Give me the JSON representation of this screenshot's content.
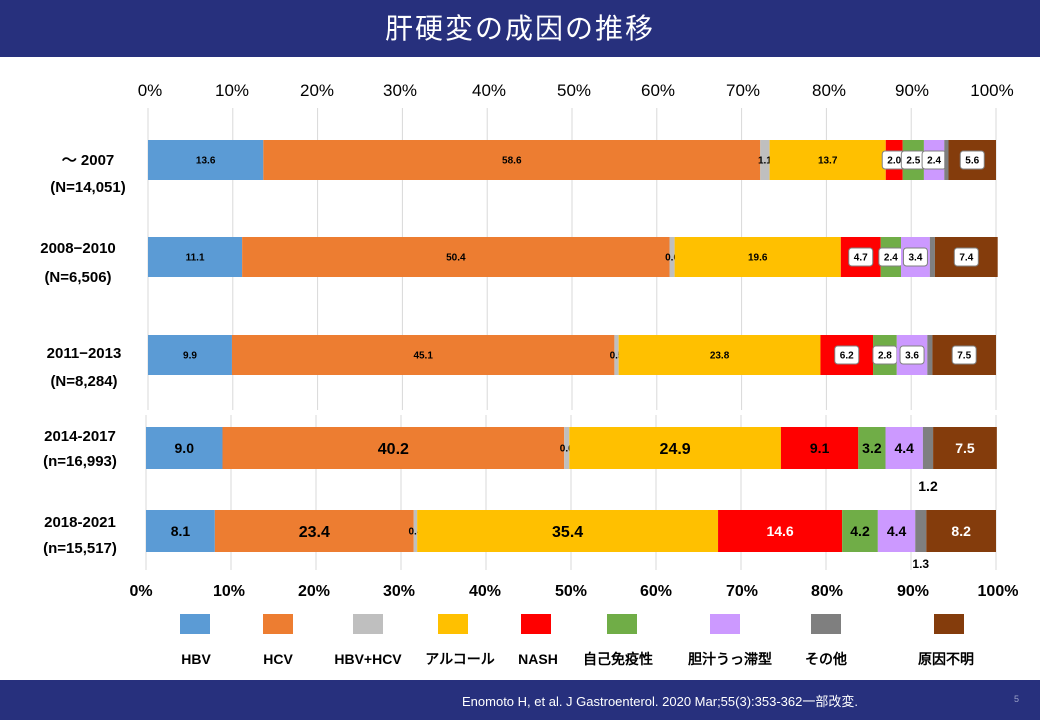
{
  "title": "肝硬変の成因の推移",
  "footer": {
    "citation": "Enomoto H, et al. J Gastroenterol. 2020 Mar;55(3):353-362一部改変.",
    "page_number": "5"
  },
  "colors": {
    "HBV": "#5b9bd5",
    "HCV": "#ed7d31",
    "HBV+HCV": "#bfbfbf",
    "alcohol": "#ffc000",
    "NASH": "#ff0000",
    "autoimmune": "#70ad47",
    "cholestatic": "#cc99ff",
    "other": "#7f7f7f",
    "unknown": "#843c0c",
    "header": "#27307d"
  },
  "chart_data": {
    "type": "bar",
    "orientation": "horizontal-stacked-100",
    "xlim": [
      0,
      100
    ],
    "grid": true,
    "legend_position": "bottom",
    "top_tick_labels": [
      "0%",
      "10%",
      "20%",
      "30%",
      "40%",
      "50%",
      "60%",
      "70%",
      "80%",
      "90%",
      "100%"
    ],
    "bottom_tick_labels": [
      "0%",
      "10%",
      "20%",
      "30%",
      "40%",
      "50%",
      "60%",
      "70%",
      "80%",
      "90%",
      "100%"
    ],
    "categories": [
      {
        "period": "～ 2007",
        "n": "(N=14,051)"
      },
      {
        "period": "2008−2010",
        "n": "(N=6,506)"
      },
      {
        "period": "2011−2013",
        "n": "(N=8,284)"
      },
      {
        "period": "2014-2017",
        "n": "(n=16,993)"
      },
      {
        "period": "2018-2021",
        "n": "(n=15,517)"
      }
    ],
    "series": [
      {
        "key": "HBV",
        "name": "HBV",
        "values": [
          13.6,
          11.1,
          9.9,
          9.0,
          8.1
        ],
        "labels": [
          "13.6",
          "11.1",
          "9.9",
          "9.0",
          "8.1"
        ]
      },
      {
        "key": "HCV",
        "name": "HCV",
        "values": [
          58.6,
          50.4,
          45.1,
          40.2,
          23.4
        ],
        "labels": [
          "58.6",
          "50.4",
          "45.1",
          "40.2",
          "23.4"
        ]
      },
      {
        "key": "HBV+HCV",
        "name": "HBV+HCV",
        "values": [
          1.1,
          0.6,
          0.5,
          0.6,
          0.4
        ],
        "labels": [
          "1.1",
          "0.6",
          "0.5",
          "0.6",
          "0.4"
        ]
      },
      {
        "key": "alcohol",
        "name": "アルコール",
        "values": [
          13.7,
          19.6,
          23.8,
          24.9,
          35.4
        ],
        "labels": [
          "13.7",
          "19.6",
          "23.8",
          "24.9",
          "35.4"
        ]
      },
      {
        "key": "NASH",
        "name": "NASH",
        "values": [
          2.0,
          4.7,
          6.2,
          9.1,
          14.6
        ],
        "labels": [
          "2.0",
          "4.7",
          "6.2",
          "9.1",
          "14.6"
        ]
      },
      {
        "key": "autoimmune",
        "name": "自己免疫性",
        "values": [
          2.5,
          2.4,
          2.8,
          3.2,
          4.2
        ],
        "labels": [
          "2.5",
          "2.4",
          "2.8",
          "3.2",
          "4.2"
        ]
      },
      {
        "key": "cholestatic",
        "name": "胆汁うっ滞型",
        "values": [
          2.4,
          3.4,
          3.6,
          4.4,
          4.4
        ],
        "labels": [
          "2.4",
          "3.4",
          "3.6",
          "4.4",
          "4.4"
        ]
      },
      {
        "key": "other",
        "name": "その他",
        "values": [
          0.5,
          0.6,
          0.6,
          1.2,
          1.3
        ],
        "labels": [
          "",
          "",
          "",
          "1.2",
          "1.3"
        ]
      },
      {
        "key": "unknown",
        "name": "原因不明",
        "values": [
          5.6,
          7.4,
          7.5,
          7.5,
          8.2
        ],
        "labels": [
          "5.6",
          "7.4",
          "7.5",
          "7.5",
          "8.2"
        ]
      }
    ]
  }
}
